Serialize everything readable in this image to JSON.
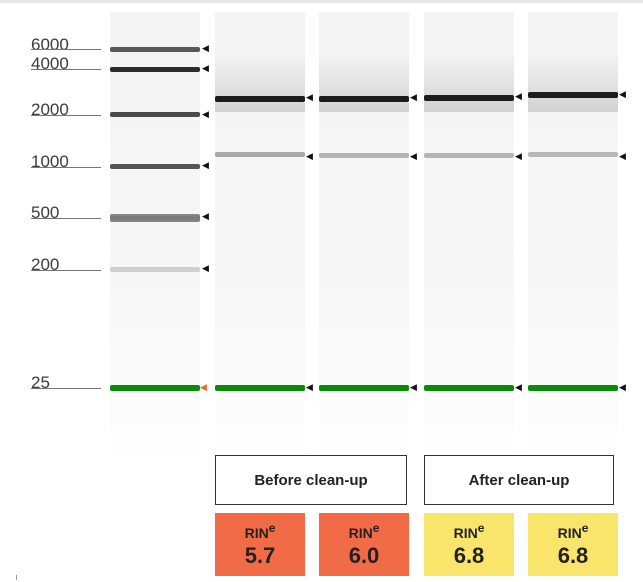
{
  "ladder": {
    "labels": [
      "6000",
      "4000",
      "2000",
      "1000",
      "500",
      "200",
      "25"
    ]
  },
  "groups": {
    "before": "Before clean-up",
    "after": "After clean-up"
  },
  "rin": {
    "label": "RIN",
    "superscript": "e",
    "samples": [
      {
        "value": "5.7",
        "color": "#f26b47"
      },
      {
        "value": "6.0",
        "color": "#f26b47"
      },
      {
        "value": "6.8",
        "color": "#f9e46c"
      },
      {
        "value": "6.8",
        "color": "#f9e46c"
      }
    ]
  },
  "colors": {
    "lower_marker": "#0a8a0a",
    "ladder_marker_arrow": "#e86a2c"
  }
}
